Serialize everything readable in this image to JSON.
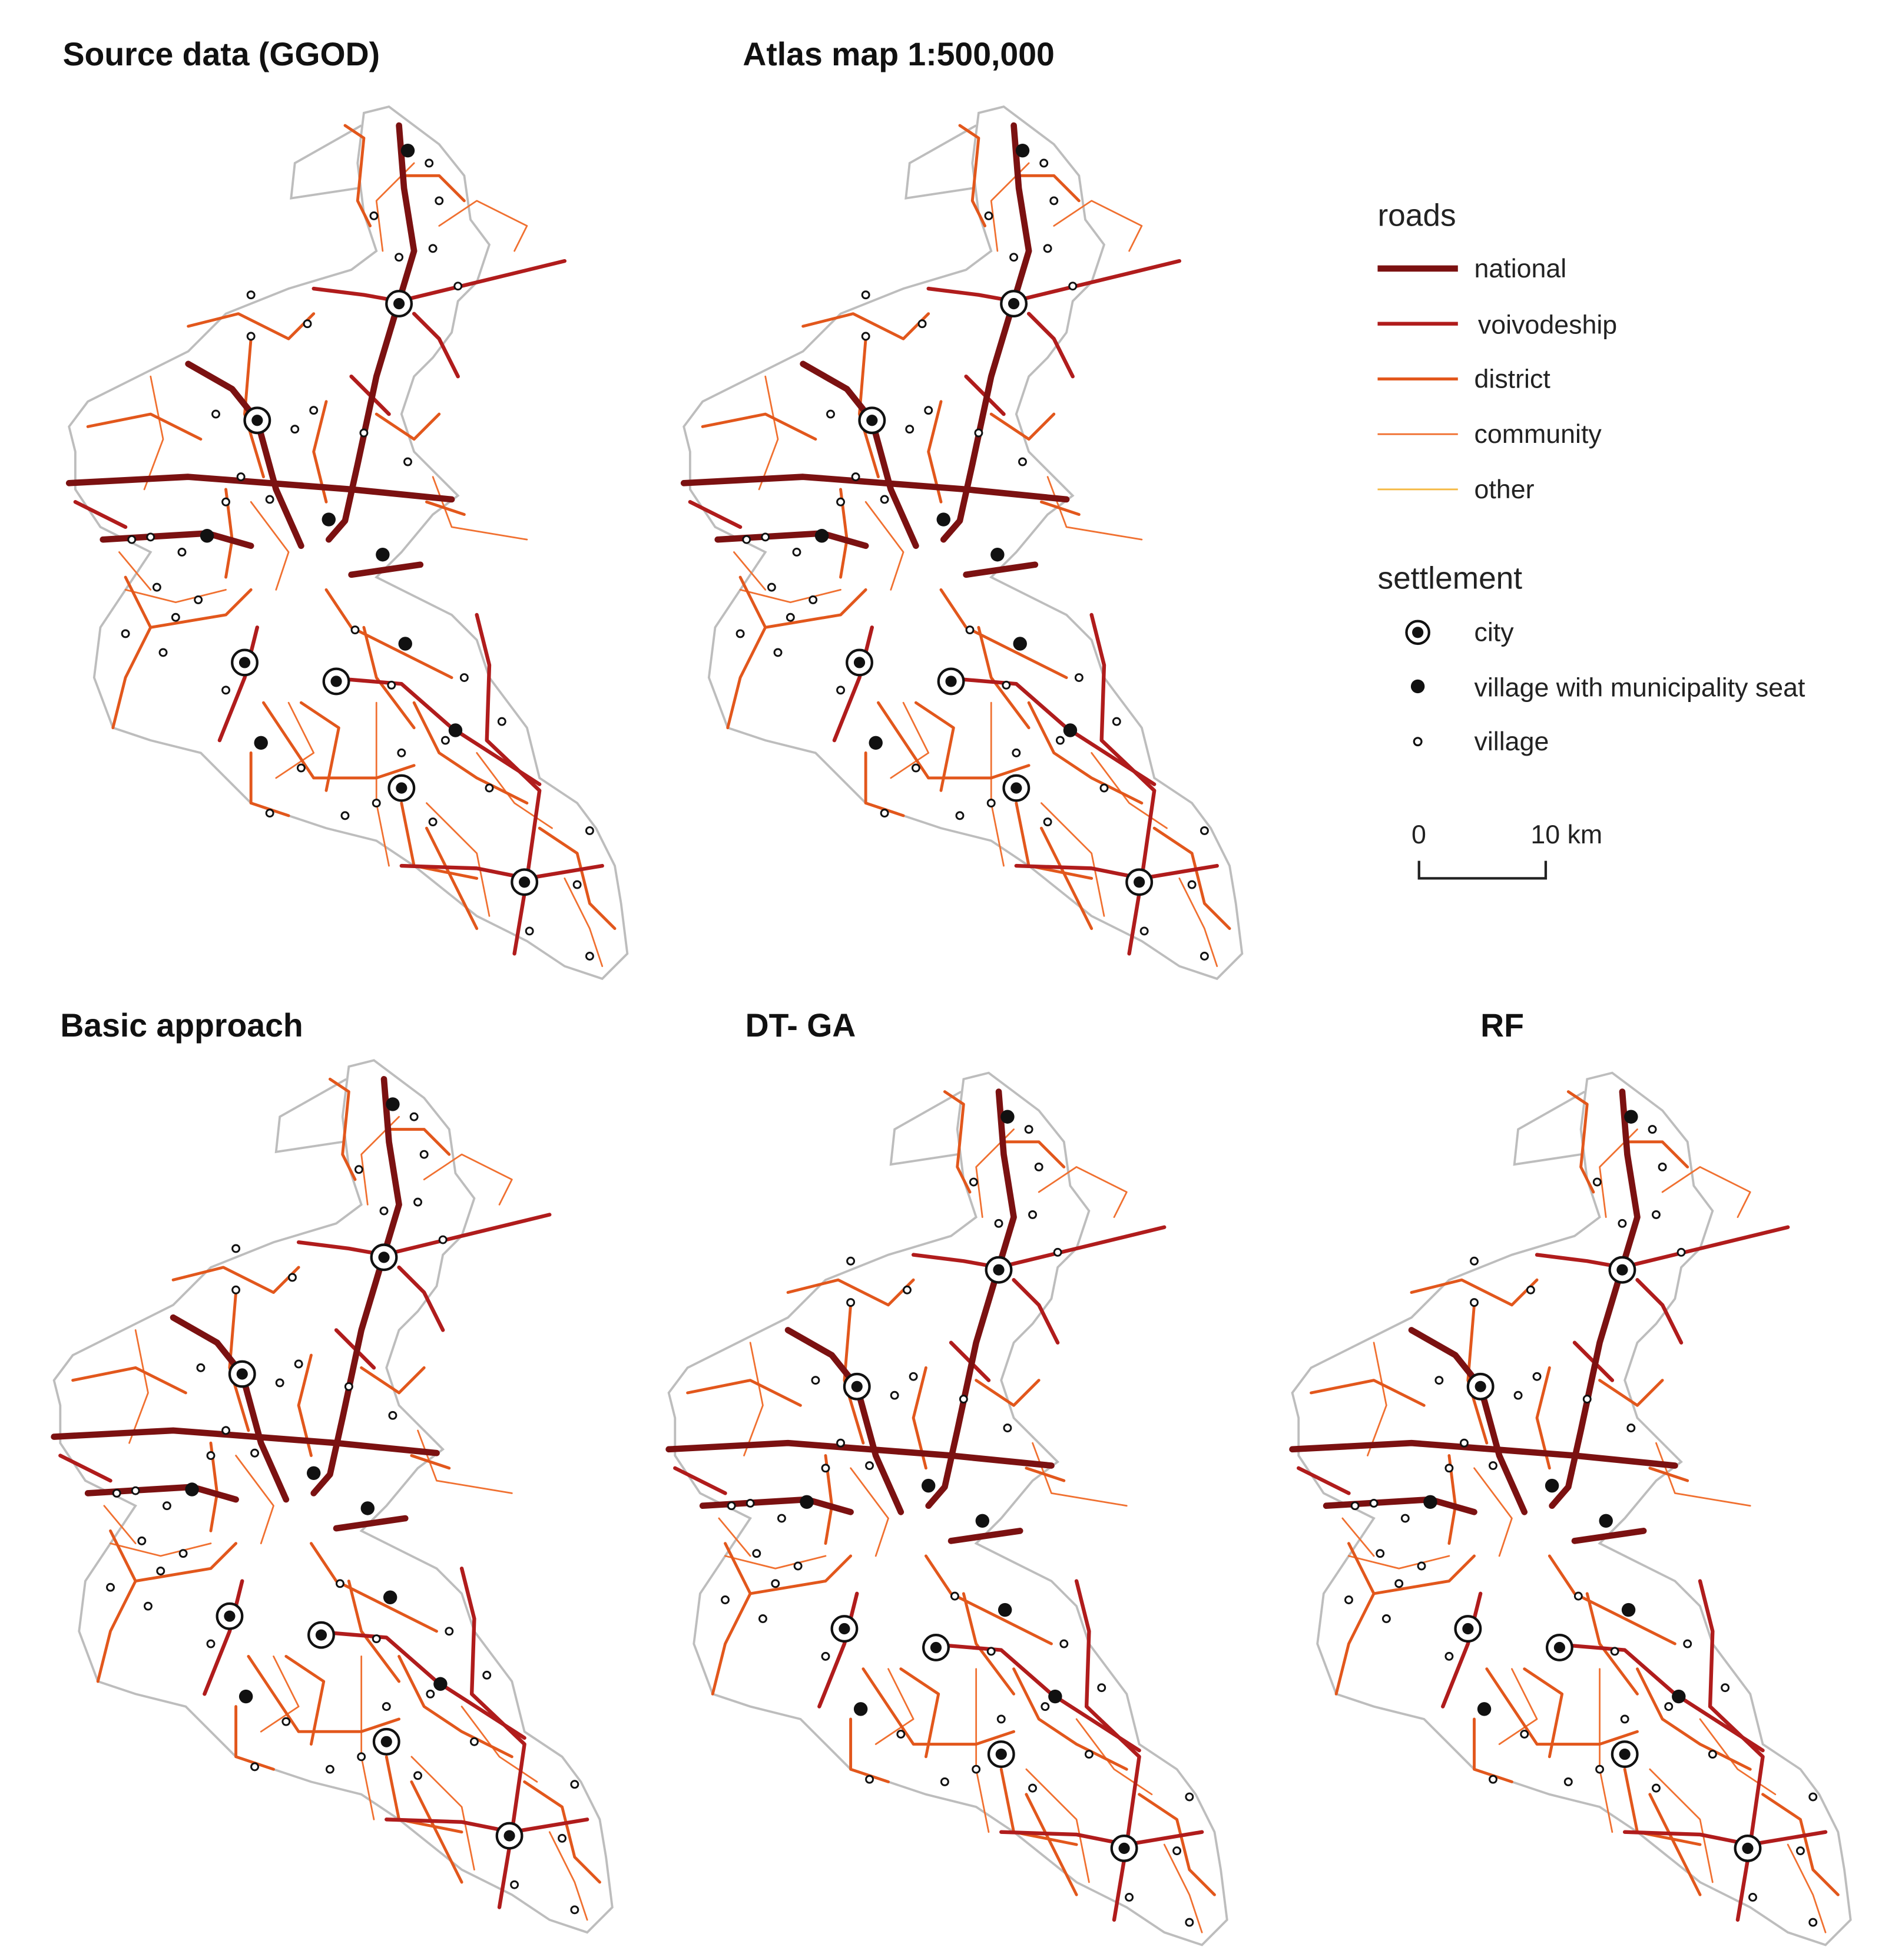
{
  "panels": [
    {
      "title": "Source data (GGOD)"
    },
    {
      "title": "Atlas map 1:500,000"
    },
    {
      "title": "Basic approach"
    },
    {
      "title": "DT- GA"
    },
    {
      "title": "RF"
    }
  ],
  "legend": {
    "roads": {
      "title": "roads",
      "items": [
        "national",
        "voivodeship",
        "district",
        "community",
        "other"
      ]
    },
    "settlement": {
      "title": "settlement",
      "items": [
        "city",
        "village with municipality seat",
        "village"
      ]
    },
    "scale_bar": {
      "labels": [
        "0",
        "10 km"
      ]
    }
  }
}
